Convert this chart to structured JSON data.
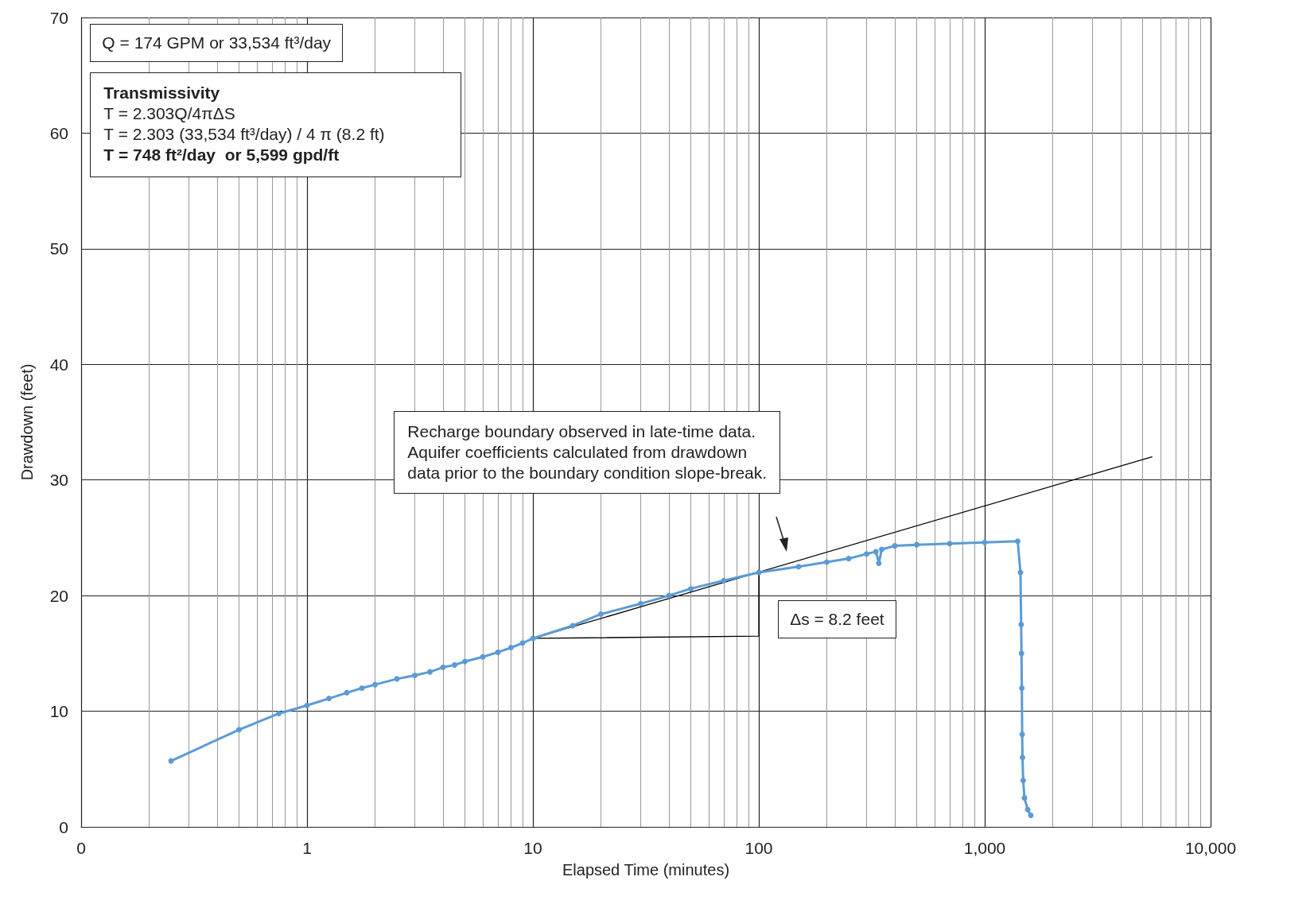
{
  "chart_data": {
    "type": "line",
    "xlabel": "Elapsed Time (minutes)",
    "ylabel": "Drawdown (feet)",
    "log": "x",
    "xlim": [
      0.1,
      10000
    ],
    "xticks": [
      {
        "value": 0.1,
        "label": "0"
      },
      1,
      10,
      100,
      {
        "value": 1000,
        "label": "1,000"
      },
      {
        "value": 10000,
        "label": "10,000"
      }
    ],
    "ylim": [
      0,
      70
    ],
    "yticks": [
      0,
      10,
      20,
      30,
      40,
      50,
      60,
      70
    ],
    "grid": true,
    "marker": "circle",
    "line_style": "solid",
    "series": [
      {
        "color": "#5b9bd5",
        "x": [
          0.25,
          0.5,
          0.75,
          1,
          1.25,
          1.5,
          1.75,
          2,
          2.5,
          3,
          3.5,
          4,
          4.5,
          5,
          6,
          7,
          8,
          9,
          10,
          15,
          20,
          30,
          40,
          50,
          70,
          100,
          150,
          200,
          250,
          300,
          330,
          340,
          350,
          400,
          500,
          700,
          1000,
          1400,
          1440,
          1450,
          1455,
          1460,
          1465,
          1470,
          1480,
          1500,
          1550,
          1600
        ],
        "values": [
          5.7,
          8.4,
          9.8,
          10.5,
          11.1,
          11.6,
          12.0,
          12.3,
          12.8,
          13.1,
          13.4,
          13.8,
          14.0,
          14.3,
          14.7,
          15.1,
          15.5,
          15.9,
          16.3,
          17.4,
          18.4,
          19.3,
          20.0,
          20.6,
          21.3,
          22.0,
          22.5,
          22.9,
          23.2,
          23.6,
          23.8,
          22.8,
          24.0,
          24.3,
          24.4,
          24.5,
          24.6,
          24.7,
          22.0,
          17.5,
          15.0,
          12.0,
          8.0,
          6.0,
          4.0,
          2.5,
          1.5,
          1.0
        ]
      },
      {
        "color": "#000000",
        "marker": "none",
        "x": [
          10,
          5500
        ],
        "values": [
          16.3,
          32.0
        ]
      },
      {
        "color": "#000000",
        "marker": "none",
        "x": [
          10,
          100,
          100
        ],
        "values": [
          16.3,
          16.5,
          22.2
        ]
      }
    ],
    "annotations": [
      "Q = 174 GPM or 33,534 ft³/day",
      "Transmissivity\nT = 2.303Q/4πΔS\nT = 2.303 (33,534 ft³/day) / 4 π (8.2 ft)\nT = 748 ft²/day  or 5,599 gpd/ft",
      "Recharge boundary observed in late-time data.\nAquifer coefficients calculated from drawdown\ndata prior to the boundary condition slope-break.",
      "Δs = 8.2 feet"
    ]
  }
}
